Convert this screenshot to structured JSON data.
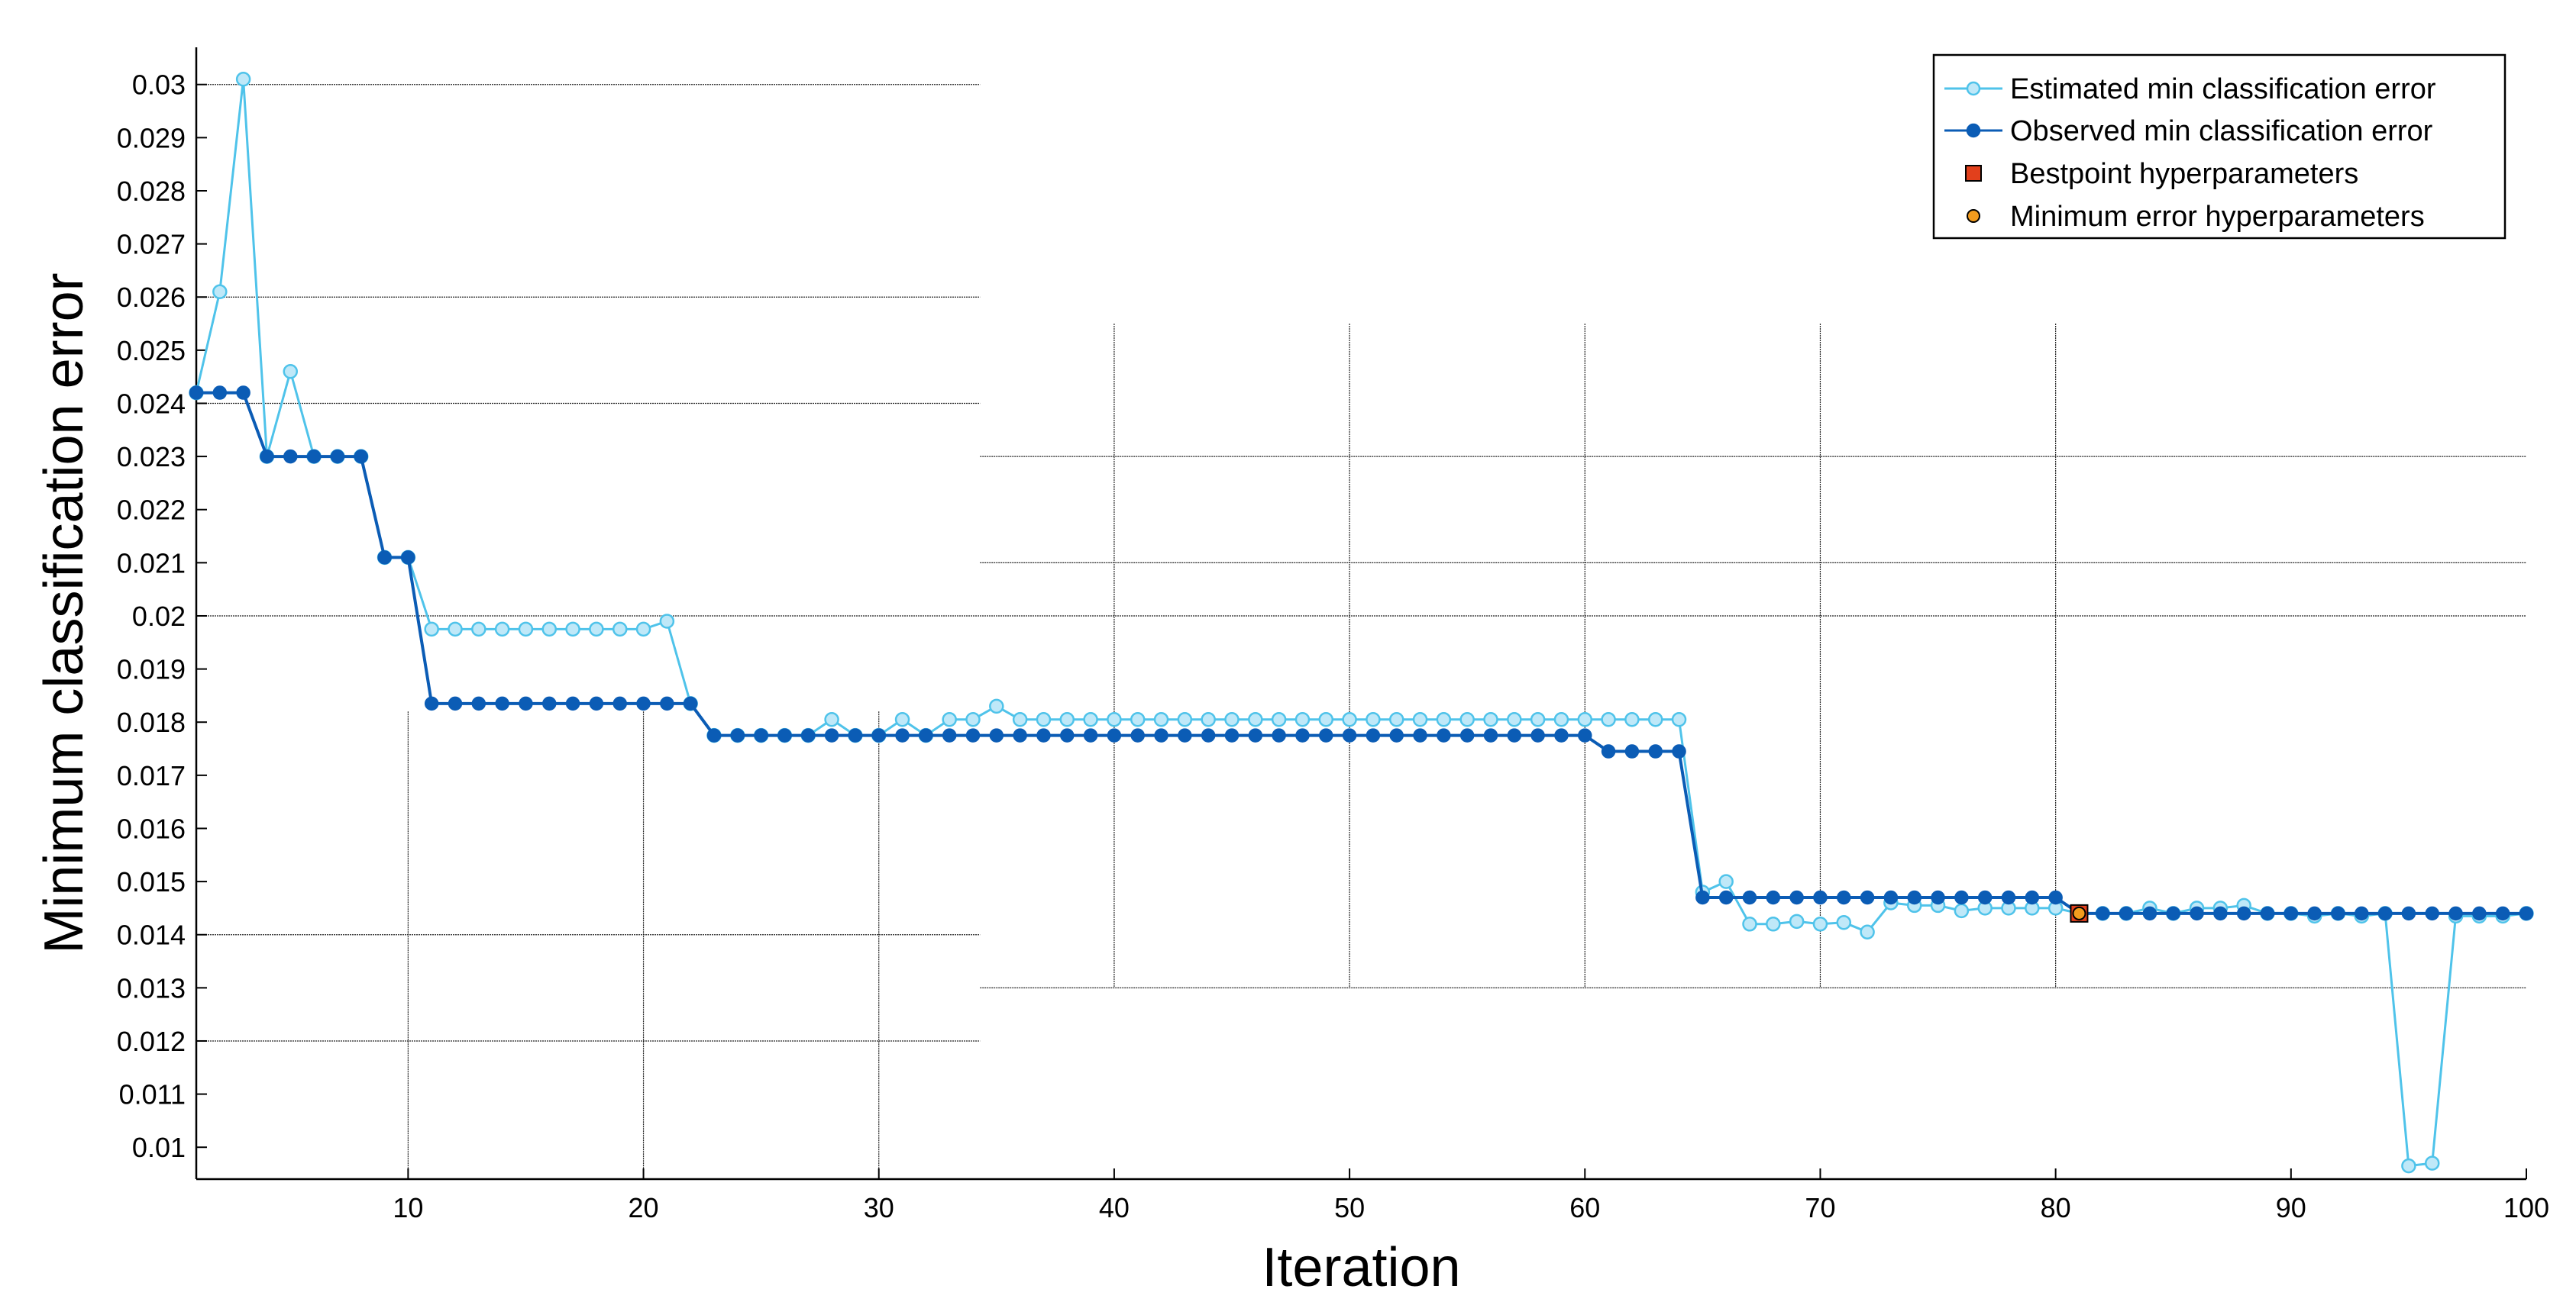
{
  "chart_data": {
    "type": "line",
    "title": "",
    "xlabel": "Iteration",
    "ylabel": "Minimum classification error",
    "xlim": [
      1,
      100
    ],
    "ylim": [
      0.0094,
      0.0307
    ],
    "x_ticks": [
      10,
      20,
      30,
      40,
      50,
      60,
      70,
      80,
      90,
      100
    ],
    "x_tick_labels": [
      "10",
      "20",
      "30",
      "40",
      "50",
      "60",
      "70",
      "80",
      "90",
      "100"
    ],
    "y_ticks": [
      0.01,
      0.011,
      0.012,
      0.013,
      0.014,
      0.015,
      0.016,
      0.017,
      0.018,
      0.019,
      0.02,
      0.021,
      0.022,
      0.023,
      0.024,
      0.025,
      0.026,
      0.027,
      0.028,
      0.029,
      0.03
    ],
    "y_tick_labels": [
      "0.01",
      "0.011",
      "0.012",
      "0.013",
      "0.014",
      "0.015",
      "0.016",
      "0.017",
      "0.018",
      "0.019",
      "0.02",
      "0.021",
      "0.022",
      "0.023",
      "0.024",
      "0.025",
      "0.026",
      "0.027",
      "0.028",
      "0.029",
      "0.03"
    ],
    "grid": "partial",
    "legend_position": "top-right",
    "series": [
      {
        "name": "Estimated min classification error",
        "color": "#4fc3ea",
        "fill": "#bfe8f8",
        "marker": "circle",
        "x": [
          1,
          2,
          3,
          4,
          5,
          6,
          7,
          8,
          9,
          10,
          11,
          12,
          13,
          14,
          15,
          16,
          17,
          18,
          19,
          20,
          21,
          22,
          23,
          24,
          25,
          26,
          27,
          28,
          29,
          30,
          31,
          32,
          33,
          34,
          35,
          36,
          37,
          38,
          39,
          40,
          41,
          42,
          43,
          44,
          45,
          46,
          47,
          48,
          49,
          50,
          51,
          52,
          53,
          54,
          55,
          56,
          57,
          58,
          59,
          60,
          61,
          62,
          63,
          64,
          65,
          66,
          67,
          68,
          69,
          70,
          71,
          72,
          73,
          74,
          75,
          76,
          77,
          78,
          79,
          80,
          81,
          82,
          83,
          84,
          85,
          86,
          87,
          88,
          89,
          90,
          91,
          92,
          93,
          94,
          95,
          96,
          97,
          98,
          99,
          100
        ],
        "values": [
          0.0242,
          0.0261,
          0.0301,
          0.023,
          0.0246,
          0.023,
          0.023,
          0.023,
          0.0211,
          0.0211,
          0.01975,
          0.01975,
          0.01975,
          0.01975,
          0.01975,
          0.01975,
          0.01975,
          0.01975,
          0.01975,
          0.01975,
          0.0199,
          0.01835,
          0.01775,
          0.01775,
          0.01775,
          0.01775,
          0.01775,
          0.01805,
          0.01775,
          0.01775,
          0.01805,
          0.01775,
          0.01805,
          0.01805,
          0.0183,
          0.01805,
          0.01805,
          0.01805,
          0.01805,
          0.01805,
          0.01805,
          0.01805,
          0.01805,
          0.01805,
          0.01805,
          0.01805,
          0.01805,
          0.01805,
          0.01805,
          0.01805,
          0.01805,
          0.01805,
          0.01805,
          0.01805,
          0.01805,
          0.01805,
          0.01805,
          0.01805,
          0.01805,
          0.01805,
          0.01805,
          0.01805,
          0.01805,
          0.01805,
          0.0148,
          0.015,
          0.0142,
          0.0142,
          0.01425,
          0.0142,
          0.01423,
          0.01405,
          0.0146,
          0.01455,
          0.01455,
          0.01445,
          0.0145,
          0.0145,
          0.0145,
          0.0145,
          0.0144,
          0.0144,
          0.0144,
          0.0145,
          0.0144,
          0.0145,
          0.0145,
          0.01455,
          0.0144,
          0.0144,
          0.01435,
          0.0144,
          0.01435,
          0.0144,
          0.00965,
          0.0097,
          0.01435,
          0.01435,
          0.01435,
          0.0144
        ]
      },
      {
        "name": "Observed min classification error",
        "color": "#0b5cb5",
        "fill": "#0b5cb5",
        "marker": "circle",
        "x": [
          1,
          2,
          3,
          4,
          5,
          6,
          7,
          8,
          9,
          10,
          11,
          12,
          13,
          14,
          15,
          16,
          17,
          18,
          19,
          20,
          21,
          22,
          23,
          24,
          25,
          26,
          27,
          28,
          29,
          30,
          31,
          32,
          33,
          34,
          35,
          36,
          37,
          38,
          39,
          40,
          41,
          42,
          43,
          44,
          45,
          46,
          47,
          48,
          49,
          50,
          51,
          52,
          53,
          54,
          55,
          56,
          57,
          58,
          59,
          60,
          61,
          62,
          63,
          64,
          65,
          66,
          67,
          68,
          69,
          70,
          71,
          72,
          73,
          74,
          75,
          76,
          77,
          78,
          79,
          80,
          81,
          82,
          83,
          84,
          85,
          86,
          87,
          88,
          89,
          90,
          91,
          92,
          93,
          94,
          95,
          96,
          97,
          98,
          99,
          100
        ],
        "values": [
          0.0242,
          0.0242,
          0.0242,
          0.023,
          0.023,
          0.023,
          0.023,
          0.023,
          0.0211,
          0.0211,
          0.01835,
          0.01835,
          0.01835,
          0.01835,
          0.01835,
          0.01835,
          0.01835,
          0.01835,
          0.01835,
          0.01835,
          0.01835,
          0.01835,
          0.01775,
          0.01775,
          0.01775,
          0.01775,
          0.01775,
          0.01775,
          0.01775,
          0.01775,
          0.01775,
          0.01775,
          0.01775,
          0.01775,
          0.01775,
          0.01775,
          0.01775,
          0.01775,
          0.01775,
          0.01775,
          0.01775,
          0.01775,
          0.01775,
          0.01775,
          0.01775,
          0.01775,
          0.01775,
          0.01775,
          0.01775,
          0.01775,
          0.01775,
          0.01775,
          0.01775,
          0.01775,
          0.01775,
          0.01775,
          0.01775,
          0.01775,
          0.01775,
          0.01775,
          0.01745,
          0.01745,
          0.01745,
          0.01745,
          0.0147,
          0.0147,
          0.0147,
          0.0147,
          0.0147,
          0.0147,
          0.0147,
          0.0147,
          0.0147,
          0.0147,
          0.0147,
          0.0147,
          0.0147,
          0.0147,
          0.0147,
          0.0147,
          0.0144,
          0.0144,
          0.0144,
          0.0144,
          0.0144,
          0.0144,
          0.0144,
          0.0144,
          0.0144,
          0.0144,
          0.0144,
          0.0144,
          0.0144,
          0.0144,
          0.0144,
          0.0144,
          0.0144,
          0.0144,
          0.0144,
          0.0144
        ]
      }
    ],
    "markers": [
      {
        "name": "Bestpoint hyperparameters",
        "shape": "square",
        "color": "#e2401c",
        "x": 81,
        "y": 0.0144
      },
      {
        "name": "Minimum error hyperparameters",
        "shape": "circle",
        "color": "#f39c1e",
        "x": 81,
        "y": 0.0144
      }
    ]
  }
}
